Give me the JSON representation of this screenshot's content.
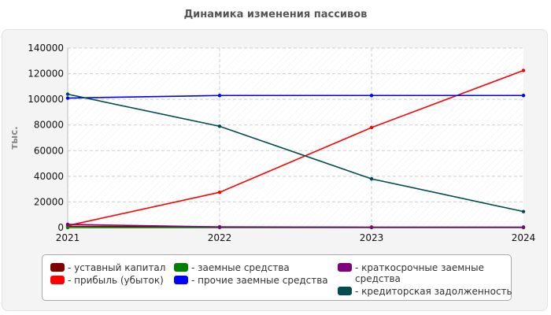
{
  "title": "Динамика изменения пассивов",
  "chart_data": {
    "type": "line",
    "x": [
      "2021",
      "2022",
      "2023",
      "2024"
    ],
    "ylabel": "тыс.",
    "ylim": [
      0,
      140000
    ],
    "yticks": [
      "0",
      "20000",
      "40000",
      "60000",
      "80000",
      "100000",
      "120000",
      "140000"
    ],
    "grid": true,
    "legend_position": "bottom",
    "series": [
      {
        "name": "- уставный капитал",
        "color": "#800000",
        "values": [
          1000,
          500,
          300,
          300
        ]
      },
      {
        "name": "- прибыль (убыток)",
        "color": "#ff0000",
        "values": [
          1500,
          27500,
          78000,
          122500
        ]
      },
      {
        "name": "- заемные средства",
        "color": "#008000",
        "values": [
          0,
          0,
          0,
          0
        ]
      },
      {
        "name": "- прочие заемные средства",
        "color": "#0000ff",
        "values": [
          101000,
          103000,
          103000,
          103000
        ]
      },
      {
        "name": "- краткосрочные заемные средства",
        "color": "#800080",
        "values": [
          2500,
          500,
          300,
          300
        ]
      },
      {
        "name": "- кредиторская задолженность",
        "color": "#004d4d",
        "values": [
          104000,
          79000,
          38000,
          12500
        ]
      }
    ]
  }
}
